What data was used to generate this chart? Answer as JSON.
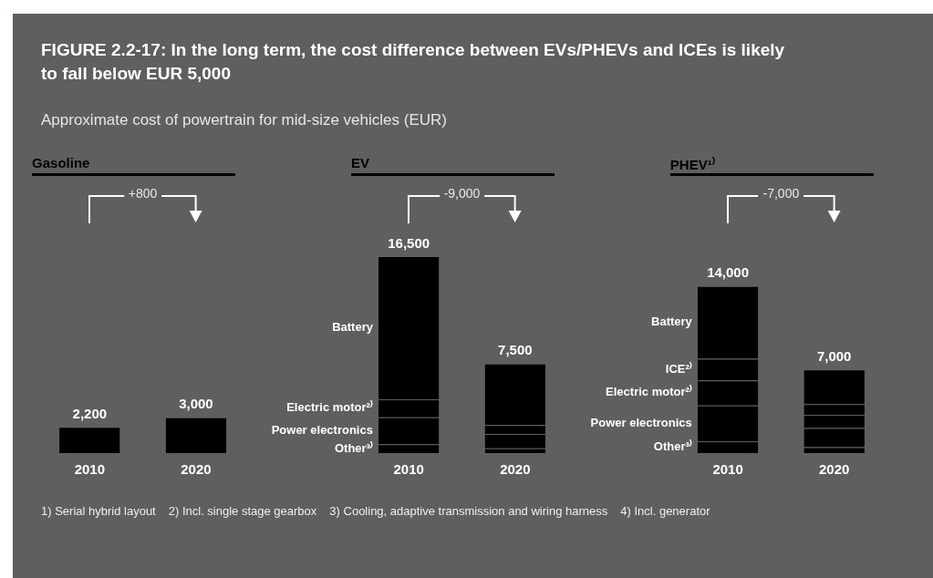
{
  "chart_data": {
    "type": "bar",
    "stacked": true,
    "title": "FIGURE 2.2-17: In the long term, the cost difference between EVs/PHEVs and ICEs is likely to fall below EUR 5,000",
    "subtitle": "Approximate cost of powertrain for mid-size vehicles (EUR)",
    "categories": [
      "2010",
      "2020",
      null,
      "2010",
      "2020",
      null,
      "2010",
      "2020"
    ],
    "series": [
      {
        "color": "#000000",
        "values": [
          2200,
          3000,
          null,
          null,
          null,
          null,
          null,
          null
        ],
        "value_labels": [
          "2,200",
          "3,000",
          null,
          null,
          null,
          null,
          null,
          null
        ]
      },
      {
        "name": "Other³⁾",
        "color": "#000000",
        "values": [
          null,
          null,
          null,
          750,
          400,
          null,
          1000,
          500
        ]
      },
      {
        "name": "Power electronics",
        "color": "#000000",
        "values": [
          null,
          null,
          null,
          2250,
          1200,
          null,
          3000,
          1600
        ]
      },
      {
        "name": "Electric motor²⁾",
        "color": "#000000",
        "values": [
          null,
          null,
          null,
          1500,
          750,
          null,
          2100,
          1100
        ]
      },
      {
        "name": "ICE²⁾",
        "color": "#000000",
        "values": [
          null,
          null,
          null,
          null,
          null,
          null,
          1800,
          900
        ]
      },
      {
        "name": "Battery",
        "color": "#000000",
        "values": [
          null,
          null,
          null,
          12000,
          5150,
          null,
          6100,
          2900
        ]
      }
    ],
    "totals": [
      null,
      null,
      null,
      "16,500",
      "7,500",
      null,
      "14,000",
      "7,000"
    ],
    "annotations": [
      "Gasoline",
      "EV",
      "PHEV¹⁾",
      "+800",
      "-9,000",
      "-7,000",
      "1) Serial hybrid layout",
      "2) Incl. single stage gearbox",
      "3) Cooling, adaptive transmission and wiring harness",
      "4) Incl. generator"
    ]
  }
}
